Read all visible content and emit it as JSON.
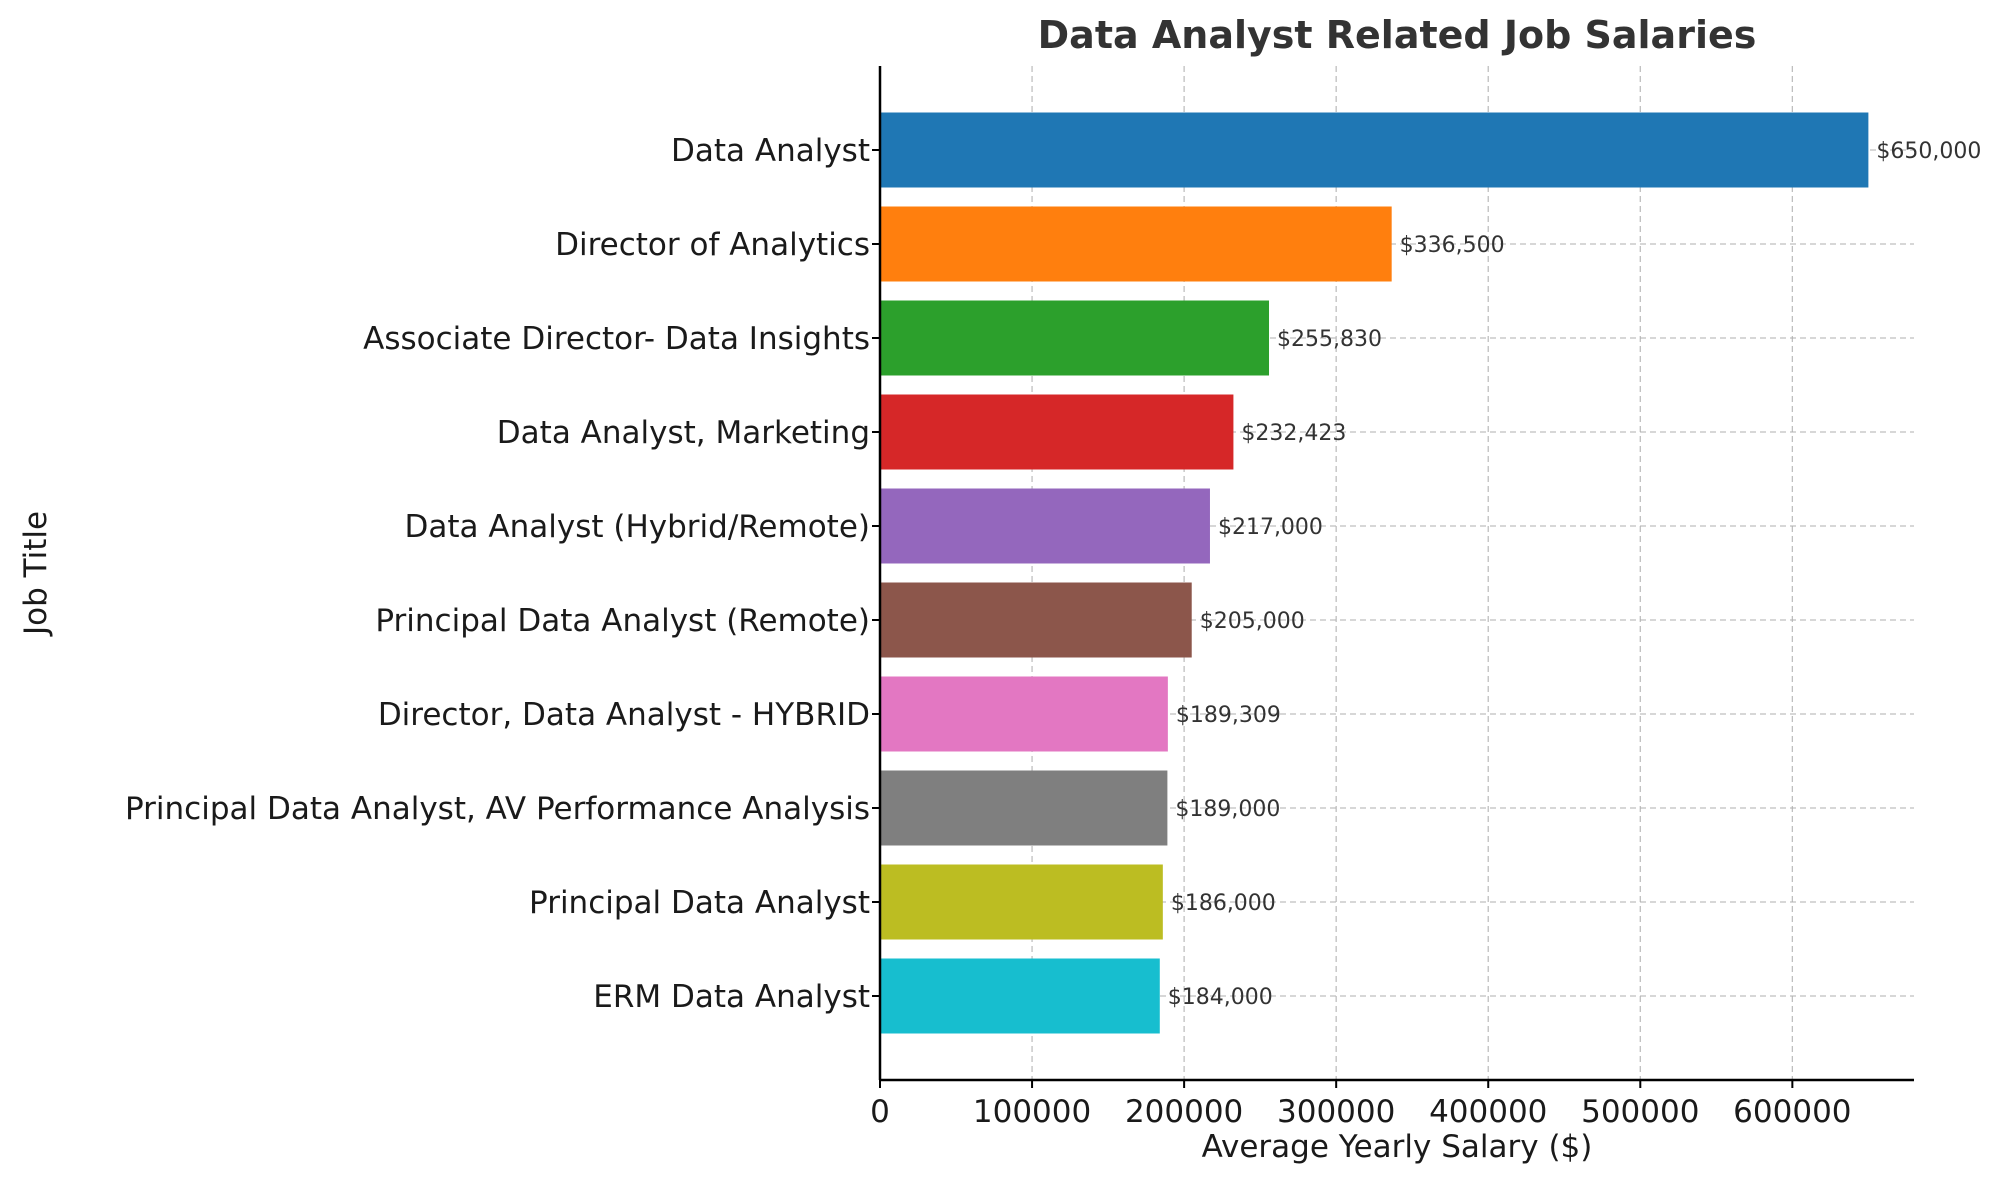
{
  "chart_data": {
    "type": "bar",
    "orientation": "horizontal",
    "title": "Data Analyst Related Job Salaries",
    "xlabel": "Average Yearly Salary ($)",
    "ylabel": "Job Title",
    "xlim": [
      0,
      680000
    ],
    "xticks": [
      0,
      100000,
      200000,
      300000,
      400000,
      500000,
      600000
    ],
    "grid": true,
    "categories": [
      "Data Analyst",
      "Director of Analytics",
      "Associate Director- Data Insights",
      "Data Analyst, Marketing",
      "Data Analyst (Hybrid/Remote)",
      "Principal Data Analyst (Remote)",
      "Director, Data Analyst - HYBRID",
      "Principal Data Analyst, AV Performance Analysis",
      "Principal Data Analyst",
      "ERM Data Analyst"
    ],
    "values": [
      650000,
      336500,
      255830,
      232423,
      217000,
      205000,
      189309,
      189000,
      186000,
      184000
    ],
    "value_labels": [
      "$650,000",
      "$336,500",
      "$255,830",
      "$232,423",
      "$217,000",
      "$205,000",
      "$189,309",
      "$189,000",
      "$186,000",
      "$184,000"
    ],
    "colors": [
      "#1f77b4",
      "#ff7f0e",
      "#2ca02c",
      "#d62728",
      "#9467bd",
      "#8c564b",
      "#e377c2",
      "#7f7f7f",
      "#bcbd22",
      "#17becf"
    ]
  }
}
